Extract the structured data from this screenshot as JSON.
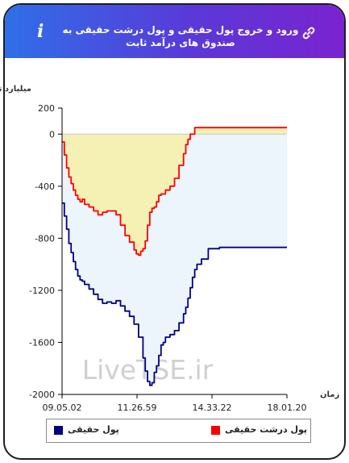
{
  "header": {
    "title": "ورود و خروج پول حقیقی و پول درشت حقیقی به صندوق های درآمد ثابت",
    "info_icon": "info-icon",
    "link_icon": "link-icon"
  },
  "watermark": "LiveTSE.ir",
  "chart_data": {
    "type": "area",
    "ylabel": "میلیارد تومان",
    "xlabel": "زمان",
    "ylim": [
      -2000,
      200
    ],
    "yticks": [
      200,
      0,
      -400,
      -800,
      -1200,
      -1600,
      -2000
    ],
    "xticks": [
      "09.05.02",
      "11.26.59",
      "14.33.22",
      "18.01.20"
    ],
    "grid": false,
    "legend_position": "bottom",
    "series": [
      {
        "name": "پول حقیقی",
        "color": "#000080",
        "fill": "#ecf4fc",
        "x": [
          0,
          1,
          2,
          3,
          4,
          5,
          6,
          7,
          8,
          9,
          10,
          12,
          14,
          16,
          18,
          20,
          22,
          24,
          26,
          28,
          30,
          32,
          34,
          36,
          37,
          38,
          39,
          40,
          41,
          42,
          43,
          44,
          45,
          46,
          48,
          50,
          52,
          54,
          55,
          56,
          57,
          58,
          59,
          60,
          62,
          65,
          70,
          75,
          80,
          90,
          100
        ],
        "values": [
          -530,
          -630,
          -730,
          -840,
          -910,
          -980,
          -1040,
          -1090,
          -1120,
          -1130,
          -1155,
          -1190,
          -1230,
          -1270,
          -1300,
          -1290,
          -1300,
          -1280,
          -1320,
          -1360,
          -1400,
          -1460,
          -1560,
          -1720,
          -1820,
          -1900,
          -1930,
          -1910,
          -1830,
          -1780,
          -1700,
          -1620,
          -1600,
          -1560,
          -1540,
          -1510,
          -1450,
          -1380,
          -1330,
          -1260,
          -1180,
          -1100,
          -1040,
          -1000,
          -960,
          -880,
          -870,
          -870,
          -870,
          -870,
          -870
        ]
      },
      {
        "name": "پول درشت حقیقی",
        "color": "#ff0000",
        "fill": "#f5f0b4",
        "x": [
          0,
          1,
          2,
          3,
          4,
          5,
          6,
          7,
          8,
          9,
          10,
          12,
          14,
          16,
          18,
          20,
          22,
          24,
          26,
          28,
          30,
          32,
          33,
          34,
          35,
          36,
          37,
          38,
          39,
          40,
          41,
          42,
          43,
          44,
          46,
          48,
          50,
          52,
          54,
          55,
          56,
          57,
          58,
          59,
          60,
          62,
          65,
          70,
          75,
          80,
          90,
          100
        ],
        "values": [
          -60,
          -160,
          -260,
          -330,
          -380,
          -430,
          -470,
          -500,
          -520,
          -500,
          -540,
          -560,
          -590,
          -620,
          -600,
          -590,
          -590,
          -620,
          -700,
          -780,
          -830,
          -890,
          -920,
          -930,
          -900,
          -880,
          -820,
          -700,
          -600,
          -570,
          -560,
          -520,
          -470,
          -460,
          -430,
          -400,
          -340,
          -240,
          -150,
          -80,
          -40,
          0,
          0,
          50,
          50,
          50,
          50,
          50,
          50,
          50,
          50,
          50
        ]
      }
    ]
  }
}
